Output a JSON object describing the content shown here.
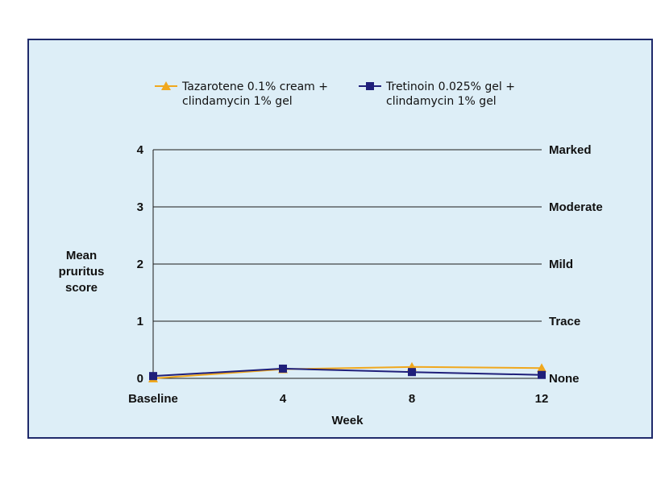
{
  "chart_data": {
    "type": "line",
    "categories": [
      "Baseline",
      "4",
      "8",
      "12"
    ],
    "xlabel": "Week",
    "ylabel": [
      "Mean",
      "pruritus",
      "score"
    ],
    "ylim": [
      0,
      4
    ],
    "y_ticks": [
      "0",
      "1",
      "2",
      "3",
      "4"
    ],
    "y_right_labels": [
      "None",
      "Trace",
      "Mild",
      "Moderate",
      "Marked"
    ],
    "grid": true,
    "legend_position": "top",
    "series": [
      {
        "name": [
          "Tazarotene 0.1% cream +",
          "clindamycin 1% gel"
        ],
        "marker": "triangle",
        "color": "#f0a81e",
        "values": [
          0.0,
          0.16,
          0.2,
          0.18
        ]
      },
      {
        "name": [
          "Tretinoin 0.025% gel +",
          "clindamycin 1% gel"
        ],
        "marker": "square",
        "color": "#1f1f7a",
        "values": [
          0.04,
          0.17,
          0.11,
          0.06
        ]
      }
    ]
  }
}
